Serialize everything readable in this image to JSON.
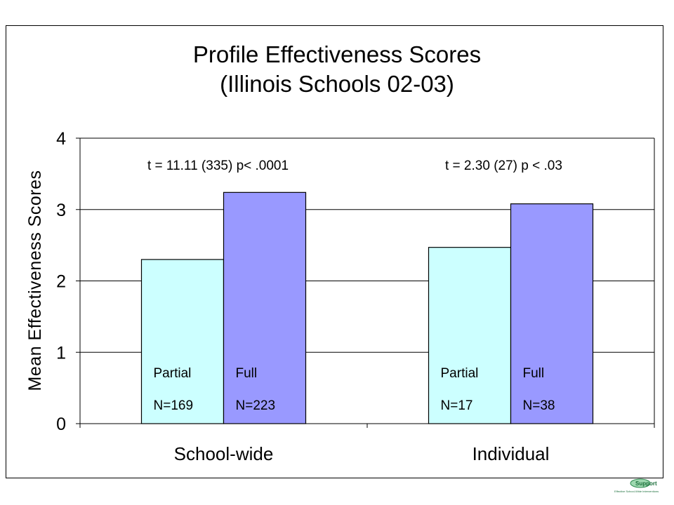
{
  "chart_data": {
    "type": "bar",
    "title_lines": [
      "Profile Effectiveness Scores",
      "(Illinois Schools 02-03)"
    ],
    "ylabel": "Mean Effectiveness Scores",
    "xlabel": "",
    "ylim": [
      0,
      4
    ],
    "yticks": [
      "0",
      "1",
      "2",
      "3",
      "4"
    ],
    "grid": true,
    "categories": [
      "School-wide",
      "Individual"
    ],
    "series": [
      {
        "name": "Partial",
        "color": "#ccffff",
        "values": [
          2.3,
          2.47
        ],
        "labels": [
          "Partial\nN=169",
          "Partial\nN=17"
        ]
      },
      {
        "name": "Full",
        "color": "#9999ff",
        "values": [
          3.24,
          3.08
        ],
        "labels": [
          "Full\nN=223",
          "Full\nN=38"
        ]
      }
    ],
    "annotations": [
      "t = 11.11 (335)  p< .0001",
      "t = 2.30 (27)  p < .03"
    ]
  },
  "bar_texts": [
    [
      "Partial",
      "N=169"
    ],
    [
      "Full",
      "N=223"
    ],
    [
      "Partial",
      "N=17"
    ],
    [
      "Full",
      "N=38"
    ]
  ],
  "logo": {
    "text": "Support",
    "tagline": "Effective School-Wide Interventions"
  }
}
